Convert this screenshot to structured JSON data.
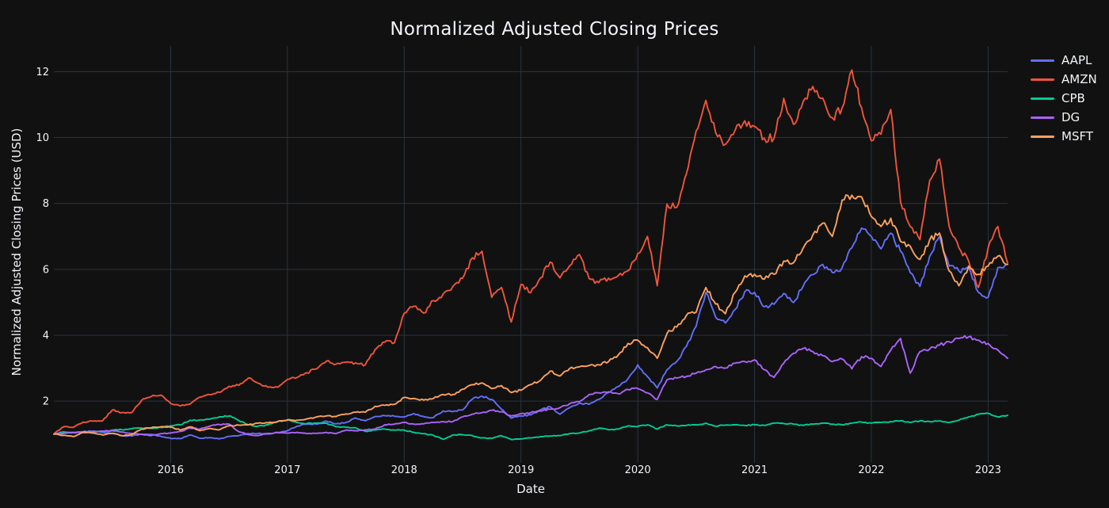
{
  "chart_data": {
    "type": "line",
    "title": "Normalized Adjusted Closing Prices",
    "xlabel": "Date",
    "ylabel": "Normalized Adjusted Closing Prices (USD)",
    "x_ticks": [
      2016,
      2017,
      2018,
      2019,
      2020,
      2021,
      2022,
      2023
    ],
    "y_ticks": [
      2,
      4,
      6,
      8,
      10,
      12
    ],
    "x_range": [
      2015.0,
      2023.167
    ],
    "y_range": [
      0.27,
      12.78
    ],
    "grid": true,
    "legend_position": "top-right",
    "x_start": 2015.0,
    "x_step": 0.0833333,
    "x_unit": "decimal-year, monthly samples Jan 2015 - Mar 2023",
    "series": [
      {
        "name": "AAPL",
        "color": "#636EFA",
        "values": [
          1.0,
          1.07,
          1.04,
          1.07,
          1.09,
          1.05,
          1.02,
          0.95,
          0.94,
          1.0,
          0.99,
          0.93,
          0.87,
          0.86,
          0.97,
          0.87,
          0.89,
          0.85,
          0.93,
          0.95,
          1.01,
          1.02,
          1.0,
          1.05,
          1.1,
          1.24,
          1.3,
          1.3,
          1.39,
          1.31,
          1.35,
          1.49,
          1.4,
          1.53,
          1.56,
          1.54,
          1.52,
          1.62,
          1.53,
          1.5,
          1.7,
          1.68,
          1.73,
          2.06,
          2.15,
          2.05,
          1.75,
          1.48,
          1.55,
          1.58,
          1.73,
          1.83,
          1.6,
          1.8,
          1.94,
          1.9,
          2.05,
          2.26,
          2.44,
          2.68,
          3.1,
          2.74,
          2.4,
          2.95,
          3.2,
          3.66,
          4.27,
          5.3,
          4.55,
          4.37,
          4.78,
          5.32,
          5.3,
          4.86,
          4.94,
          5.27,
          4.99,
          5.49,
          5.84,
          6.15,
          5.9,
          6.05,
          6.65,
          7.25,
          7.0,
          6.62,
          7.1,
          6.55,
          5.9,
          5.48,
          6.4,
          7.0,
          6.1,
          5.95,
          6.05,
          5.3,
          5.15,
          6.05,
          6.15
        ]
      },
      {
        "name": "AMZN",
        "color": "#EF553B",
        "values": [
          1.0,
          1.22,
          1.2,
          1.36,
          1.39,
          1.4,
          1.73,
          1.65,
          1.65,
          2.02,
          2.14,
          2.18,
          1.93,
          1.85,
          1.91,
          2.12,
          2.2,
          2.27,
          2.45,
          2.48,
          2.7,
          2.54,
          2.42,
          2.42,
          2.66,
          2.72,
          2.86,
          2.98,
          3.21,
          3.12,
          3.18,
          3.16,
          3.1,
          3.56,
          3.79,
          3.77,
          4.67,
          4.88,
          4.67,
          5.05,
          5.25,
          5.48,
          5.73,
          6.35,
          6.55,
          5.15,
          5.45,
          4.4,
          5.54,
          5.29,
          5.74,
          6.22,
          5.74,
          6.11,
          6.45,
          5.72,
          5.6,
          5.73,
          5.81,
          5.96,
          6.48,
          7.0,
          5.5,
          7.98,
          7.88,
          8.9,
          10.2,
          11.13,
          10.15,
          9.79,
          10.22,
          10.51,
          10.34,
          9.98,
          9.98,
          11.19,
          10.4,
          11.1,
          11.55,
          11.2,
          10.6,
          10.9,
          12.05,
          10.9,
          9.9,
          10.1,
          10.85,
          8.05,
          7.3,
          6.9,
          8.7,
          9.35,
          7.3,
          6.65,
          6.25,
          5.45,
          6.65,
          7.3,
          6.2
        ]
      },
      {
        "name": "CPB",
        "color": "#00CC96",
        "values": [
          1.0,
          1.04,
          1.05,
          1.04,
          1.06,
          1.08,
          1.12,
          1.13,
          1.16,
          1.18,
          1.17,
          1.2,
          1.25,
          1.28,
          1.42,
          1.43,
          1.45,
          1.52,
          1.55,
          1.41,
          1.28,
          1.24,
          1.28,
          1.38,
          1.42,
          1.35,
          1.32,
          1.33,
          1.33,
          1.22,
          1.2,
          1.19,
          1.08,
          1.12,
          1.15,
          1.12,
          1.12,
          1.05,
          1.01,
          0.96,
          0.84,
          0.97,
          0.98,
          0.95,
          0.88,
          0.87,
          0.95,
          0.83,
          0.85,
          0.88,
          0.92,
          0.94,
          0.95,
          1.01,
          1.03,
          1.1,
          1.18,
          1.13,
          1.15,
          1.25,
          1.23,
          1.28,
          1.15,
          1.28,
          1.25,
          1.26,
          1.28,
          1.33,
          1.24,
          1.27,
          1.28,
          1.26,
          1.28,
          1.26,
          1.33,
          1.32,
          1.3,
          1.26,
          1.3,
          1.33,
          1.3,
          1.28,
          1.33,
          1.36,
          1.33,
          1.35,
          1.38,
          1.4,
          1.35,
          1.4,
          1.38,
          1.4,
          1.35,
          1.42,
          1.52,
          1.6,
          1.63,
          1.52,
          1.57
        ]
      },
      {
        "name": "DG",
        "color": "#AB63FA",
        "values": [
          1.0,
          1.02,
          1.05,
          1.04,
          1.07,
          1.09,
          1.1,
          1.06,
          1.02,
          0.99,
          0.95,
          1.01,
          1.03,
          1.08,
          1.18,
          1.15,
          1.24,
          1.29,
          1.3,
          1.07,
          0.98,
          0.95,
          1.02,
          1.04,
          1.03,
          1.05,
          1.01,
          1.02,
          1.05,
          1.01,
          1.12,
          1.1,
          1.13,
          1.15,
          1.28,
          1.3,
          1.35,
          1.3,
          1.31,
          1.35,
          1.38,
          1.38,
          1.52,
          1.6,
          1.65,
          1.72,
          1.68,
          1.55,
          1.62,
          1.65,
          1.7,
          1.75,
          1.8,
          1.92,
          1.98,
          2.2,
          2.25,
          2.28,
          2.22,
          2.35,
          2.38,
          2.25,
          2.05,
          2.65,
          2.7,
          2.75,
          2.85,
          2.95,
          3.05,
          3.0,
          3.15,
          3.2,
          3.25,
          2.95,
          2.72,
          3.15,
          3.45,
          3.6,
          3.5,
          3.38,
          3.2,
          3.28,
          2.98,
          3.35,
          3.3,
          3.05,
          3.55,
          3.9,
          2.85,
          3.5,
          3.58,
          3.7,
          3.8,
          3.9,
          3.95,
          3.85,
          3.75,
          3.55,
          3.3
        ]
      },
      {
        "name": "MSFT",
        "color": "#FFA15A",
        "values": [
          1.0,
          0.96,
          0.92,
          1.06,
          1.03,
          0.97,
          1.02,
          0.95,
          0.98,
          1.15,
          1.19,
          1.22,
          1.21,
          1.12,
          1.22,
          1.1,
          1.17,
          1.13,
          1.25,
          1.27,
          1.28,
          1.33,
          1.34,
          1.38,
          1.43,
          1.42,
          1.46,
          1.52,
          1.55,
          1.53,
          1.61,
          1.66,
          1.66,
          1.84,
          1.87,
          1.9,
          2.11,
          2.08,
          2.03,
          2.08,
          2.2,
          2.2,
          2.36,
          2.5,
          2.55,
          2.38,
          2.47,
          2.26,
          2.33,
          2.5,
          2.63,
          2.91,
          2.76,
          2.99,
          3.04,
          3.08,
          3.1,
          3.2,
          3.4,
          3.75,
          3.85,
          3.62,
          3.3,
          4.05,
          4.25,
          4.6,
          4.7,
          5.45,
          4.95,
          4.65,
          5.3,
          5.8,
          5.85,
          5.7,
          5.85,
          6.25,
          6.2,
          6.65,
          7.05,
          7.4,
          7.0,
          8.1,
          8.25,
          8.2,
          7.6,
          7.3,
          7.55,
          6.85,
          6.7,
          6.3,
          6.9,
          7.1,
          5.95,
          5.5,
          6.1,
          5.85,
          6.1,
          6.4,
          6.15
        ]
      }
    ]
  },
  "colors": {
    "background": "#111111",
    "grid": "#283442",
    "tick": "#283442",
    "text": "#f2f5fa"
  }
}
